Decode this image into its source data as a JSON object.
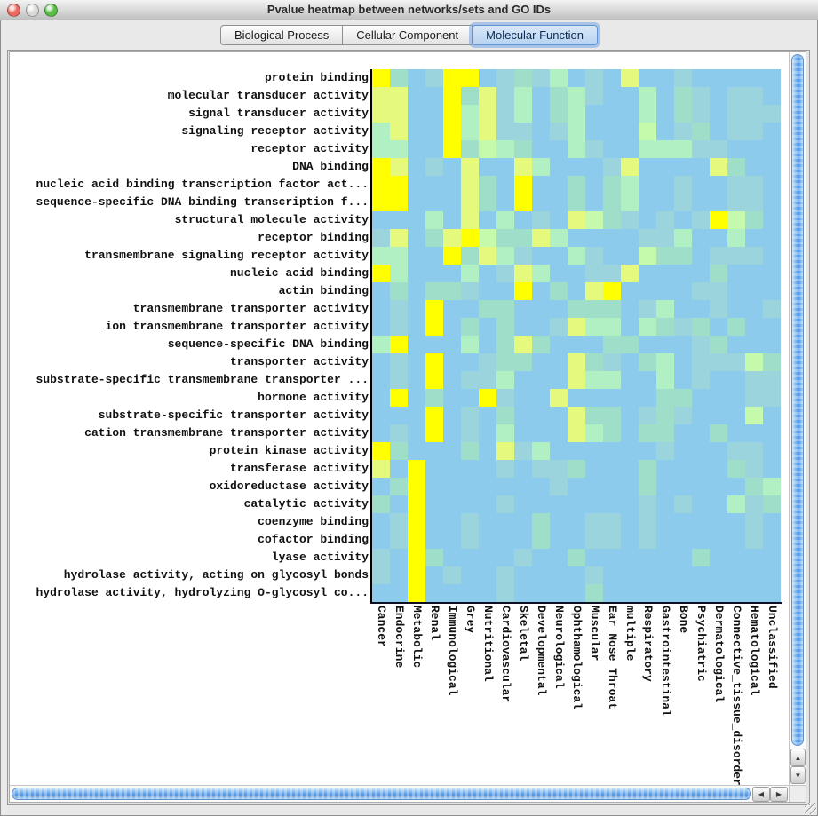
{
  "window": {
    "title": "Pvalue heatmap between networks/sets and GO IDs",
    "traffic_lights": [
      {
        "name": "close-button",
        "color": "#ED6A5F"
      },
      {
        "name": "minimize-button",
        "color": "#D8DAD5"
      },
      {
        "name": "zoom-button",
        "color": "#58BE44"
      }
    ]
  },
  "tabs": [
    {
      "label": "Biological Process",
      "selected": false
    },
    {
      "label": "Cellular Component",
      "selected": false
    },
    {
      "label": "Molecular Function",
      "selected": true
    }
  ],
  "heatmap": {
    "row_labels": [
      "protein binding",
      "molecular transducer activity",
      "signal transducer activity",
      "signaling receptor activity",
      "receptor activity",
      "DNA binding",
      "nucleic acid binding transcription factor act...",
      "sequence-specific DNA binding transcription f...",
      "structural molecule activity",
      "receptor binding",
      "transmembrane signaling receptor activity",
      "nucleic acid binding",
      "actin binding",
      "transmembrane transporter activity",
      "ion transmembrane transporter activity",
      "sequence-specific DNA binding",
      "transporter activity",
      "substrate-specific transmembrane transporter ...",
      "hormone activity",
      "substrate-specific transporter activity",
      "cation transmembrane transporter activity",
      "protein kinase activity",
      "transferase activity",
      "oxidoreductase activity",
      "catalytic activity",
      "coenzyme binding",
      "cofactor binding",
      "lyase activity",
      "hydrolase activity, acting on glycosyl bonds",
      "hydrolase activity, hydrolyzing O-glycosyl co..."
    ],
    "col_labels": [
      "Cancer",
      "Endocrine",
      "Metabolic",
      "Renal",
      "Immunological",
      "Grey",
      "Nutritional",
      "Cardiovascular",
      "Skeletal",
      "Developmental",
      "Neurological",
      "Ophthamological",
      "Muscular",
      "Ear_Nose_Throat",
      "multiple",
      "Respiratory",
      "Gastrointestinal",
      "Bone",
      "Psychiatric",
      "Dermatological",
      "Connective_tissue_disorder",
      "Hematological",
      "Unclassified"
    ],
    "palette": {
      "B": "#8CCBEB",
      "C": "#9BD4DC",
      "T": "#9FDFC9",
      "M": "#B1F0C2",
      "G": "#C5FAAD",
      "y": "#E5F97C",
      "Y": "#FFFF00"
    },
    "cells": [
      "YTBCYYBCTCMBCByBBCBBBBB",
      "yyBBYTyCMBTMCBBMBTCBCCB",
      "yyBBYMyCMBTMBBBMBTCBCCC",
      "MyBBYMyCCBCMBBBGBCTBCCB",
      "MMBBYTGMTBBMCBBMMMCCBBB",
      "YyBCByBByMBBBCyBBBByTBB",
      "YYBBByTBYBBTBTMBBCBBCCB",
      "YYBBByTBYBBTBTMBBCBBCCB",
      "BBBMByBMBCByGTCBCBCYGTB",
      "CyBTyYGTTyMBBBBCCMBBMBB",
      "MMBBYTyMCBBMCBBGTTBCCCB",
      "YMBBBMBCyMBBCCyBBBBTBBB",
      "BTBTTCBBYBTByYBBBBCCBBB",
      "BCBYBBTTBBBTTTBCMBBCBBC",
      "BCBYBTBTBBCyMMBMTCTBTBB",
      "MYBBBMBTyTBBBTTBBBCTBBB",
      "BCBYBBCTTBByTCBTMBCCCGT",
      "BCBYBCCMBBByMMBBMBCBBCC",
      "BYBTBBYCBByBBBBBTTBBBCC",
      "BBBYBCBTBBByTTBCTCBBBGB",
      "BCBYBCBMBBByMTBTTBBTBBB",
      "YTBBBTByCMBBBBBBCBBBCCB",
      "yBYBBBBCBCCTBBBTBBBBTCB",
      "BTYBBBBBBBCBBBBTBBBBBTM",
      "TBYBBBBCBBBBBBBCBCBBMCT",
      "BCYBBCBBBTBBCCBCBBBBBCB",
      "BCYBBCBBBTBBCCBCBBBBBCB",
      "CBYTBBBBCBBTBBBBBBTBBBB",
      "CBYBCBBCBBBBCBBBBBBBBBB",
      "BBYBBBBCBBBBTBBBBBBBBBB"
    ],
    "axis_color": "#101025"
  },
  "scrollbars": {
    "up": "▲",
    "down": "▼",
    "left": "◀",
    "right": "▶"
  }
}
